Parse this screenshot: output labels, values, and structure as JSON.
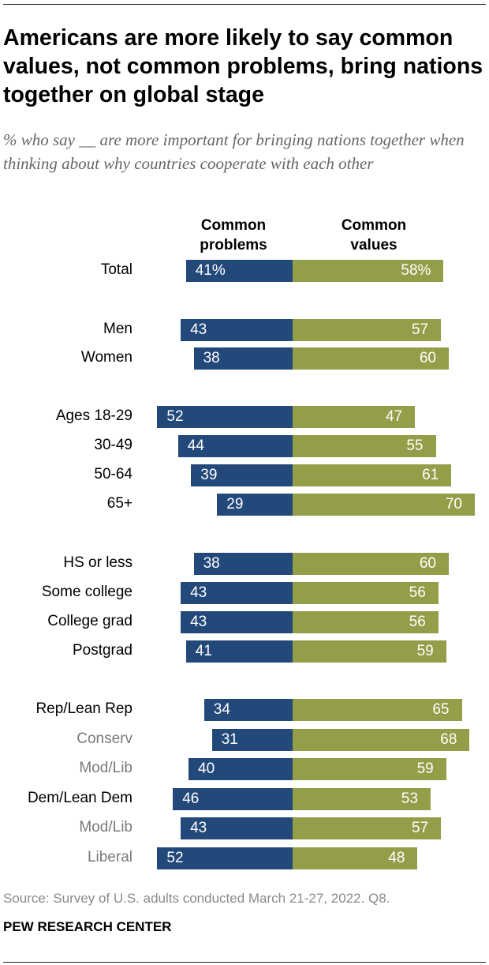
{
  "title": "Americans are more likely to say common values, not common problems, bring nations together on global stage",
  "subtitle": "% who say __ are more important for bringing nations together when thinking about why countries cooperate with each other",
  "source": "Source: Survey of U.S. adults conducted March 21-27, 2022. Q8.",
  "brand": "PEW RESEARCH CENTER",
  "chart_data": {
    "type": "bar",
    "orientation": "horizontal diverging",
    "series": [
      {
        "name": "Common problems",
        "color": "#23497a"
      },
      {
        "name": "Common values",
        "color": "#949d48"
      }
    ],
    "rows": [
      {
        "label": "Total",
        "problems": 41,
        "values": 58,
        "suffix": "%",
        "sub": false
      },
      {
        "label": "Men",
        "problems": 43,
        "values": 57,
        "sub": false
      },
      {
        "label": "Women",
        "problems": 38,
        "values": 60,
        "sub": false
      },
      {
        "label": "Ages 18-29",
        "problems": 52,
        "values": 47,
        "sub": false
      },
      {
        "label": "30-49",
        "problems": 44,
        "values": 55,
        "sub": false
      },
      {
        "label": "50-64",
        "problems": 39,
        "values": 61,
        "sub": false
      },
      {
        "label": "65+",
        "problems": 29,
        "values": 70,
        "sub": false
      },
      {
        "label": "HS or less",
        "problems": 38,
        "values": 60,
        "sub": false
      },
      {
        "label": "Some college",
        "problems": 43,
        "values": 56,
        "sub": false
      },
      {
        "label": "College grad",
        "problems": 43,
        "values": 56,
        "sub": false
      },
      {
        "label": "Postgrad",
        "problems": 41,
        "values": 59,
        "sub": false
      },
      {
        "label": "Rep/Lean Rep",
        "problems": 34,
        "values": 65,
        "sub": false
      },
      {
        "label": "Conserv",
        "problems": 31,
        "values": 68,
        "sub": true
      },
      {
        "label": "Mod/Lib",
        "problems": 40,
        "values": 59,
        "sub": true
      },
      {
        "label": "Dem/Lean Dem",
        "problems": 46,
        "values": 53,
        "sub": false
      },
      {
        "label": "Mod/Lib",
        "problems": 43,
        "values": 57,
        "sub": true
      },
      {
        "label": "Liberal",
        "problems": 52,
        "values": 48,
        "sub": true
      }
    ]
  }
}
